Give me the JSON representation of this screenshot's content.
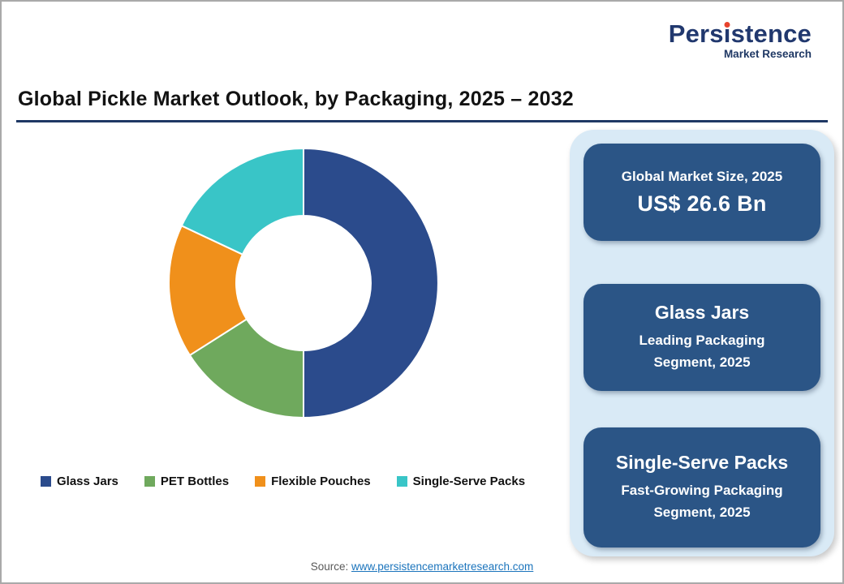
{
  "logo": {
    "name": "Persistence",
    "name_parts": [
      "Pers",
      "i",
      "stence"
    ],
    "tagline": "Market Research",
    "brand_color": "#1F3864",
    "dot_color": "#E8432C"
  },
  "header": {
    "title": "Global Pickle Market Outlook, by Packaging, 2025 – 2032"
  },
  "chart_data": {
    "type": "pie",
    "variant": "donut",
    "title": "Global Pickle Market Outlook, by Packaging, 2025 – 2032",
    "categories": [
      "Glass Jars",
      "PET Bottles",
      "Flexible Pouches",
      "Single-Serve Packs"
    ],
    "values": [
      50,
      16,
      16,
      18
    ],
    "values_unit": "%",
    "values_note": "shares estimated from arc angles; no numeric labels shown in chart",
    "colors": [
      "#2B4B8C",
      "#6FA95D",
      "#F0901B",
      "#39C5C7"
    ],
    "legend_position": "bottom",
    "inner_radius_ratio": 0.5,
    "start_angle_deg": 0,
    "direction": "clockwise"
  },
  "panel": {
    "cards": [
      {
        "title": "Global Market Size, 2025",
        "value": "US$ 26.6 Bn"
      },
      {
        "title": "Glass Jars",
        "lines": [
          "Leading Packaging",
          "Segment, 2025"
        ]
      },
      {
        "title": "Single-Serve Packs",
        "lines": [
          "Fast-Growing Packaging",
          "Segment, 2025"
        ]
      }
    ],
    "panel_bg": "#D9EAF6",
    "card_bg": "#2B5586"
  },
  "source": {
    "label": "Source: ",
    "link": "www.persistencemarketresearch.com"
  },
  "colors": {
    "navy_accent": "#1F3864",
    "logo_red": "#E8432C",
    "link_blue": "#1B74BC"
  }
}
